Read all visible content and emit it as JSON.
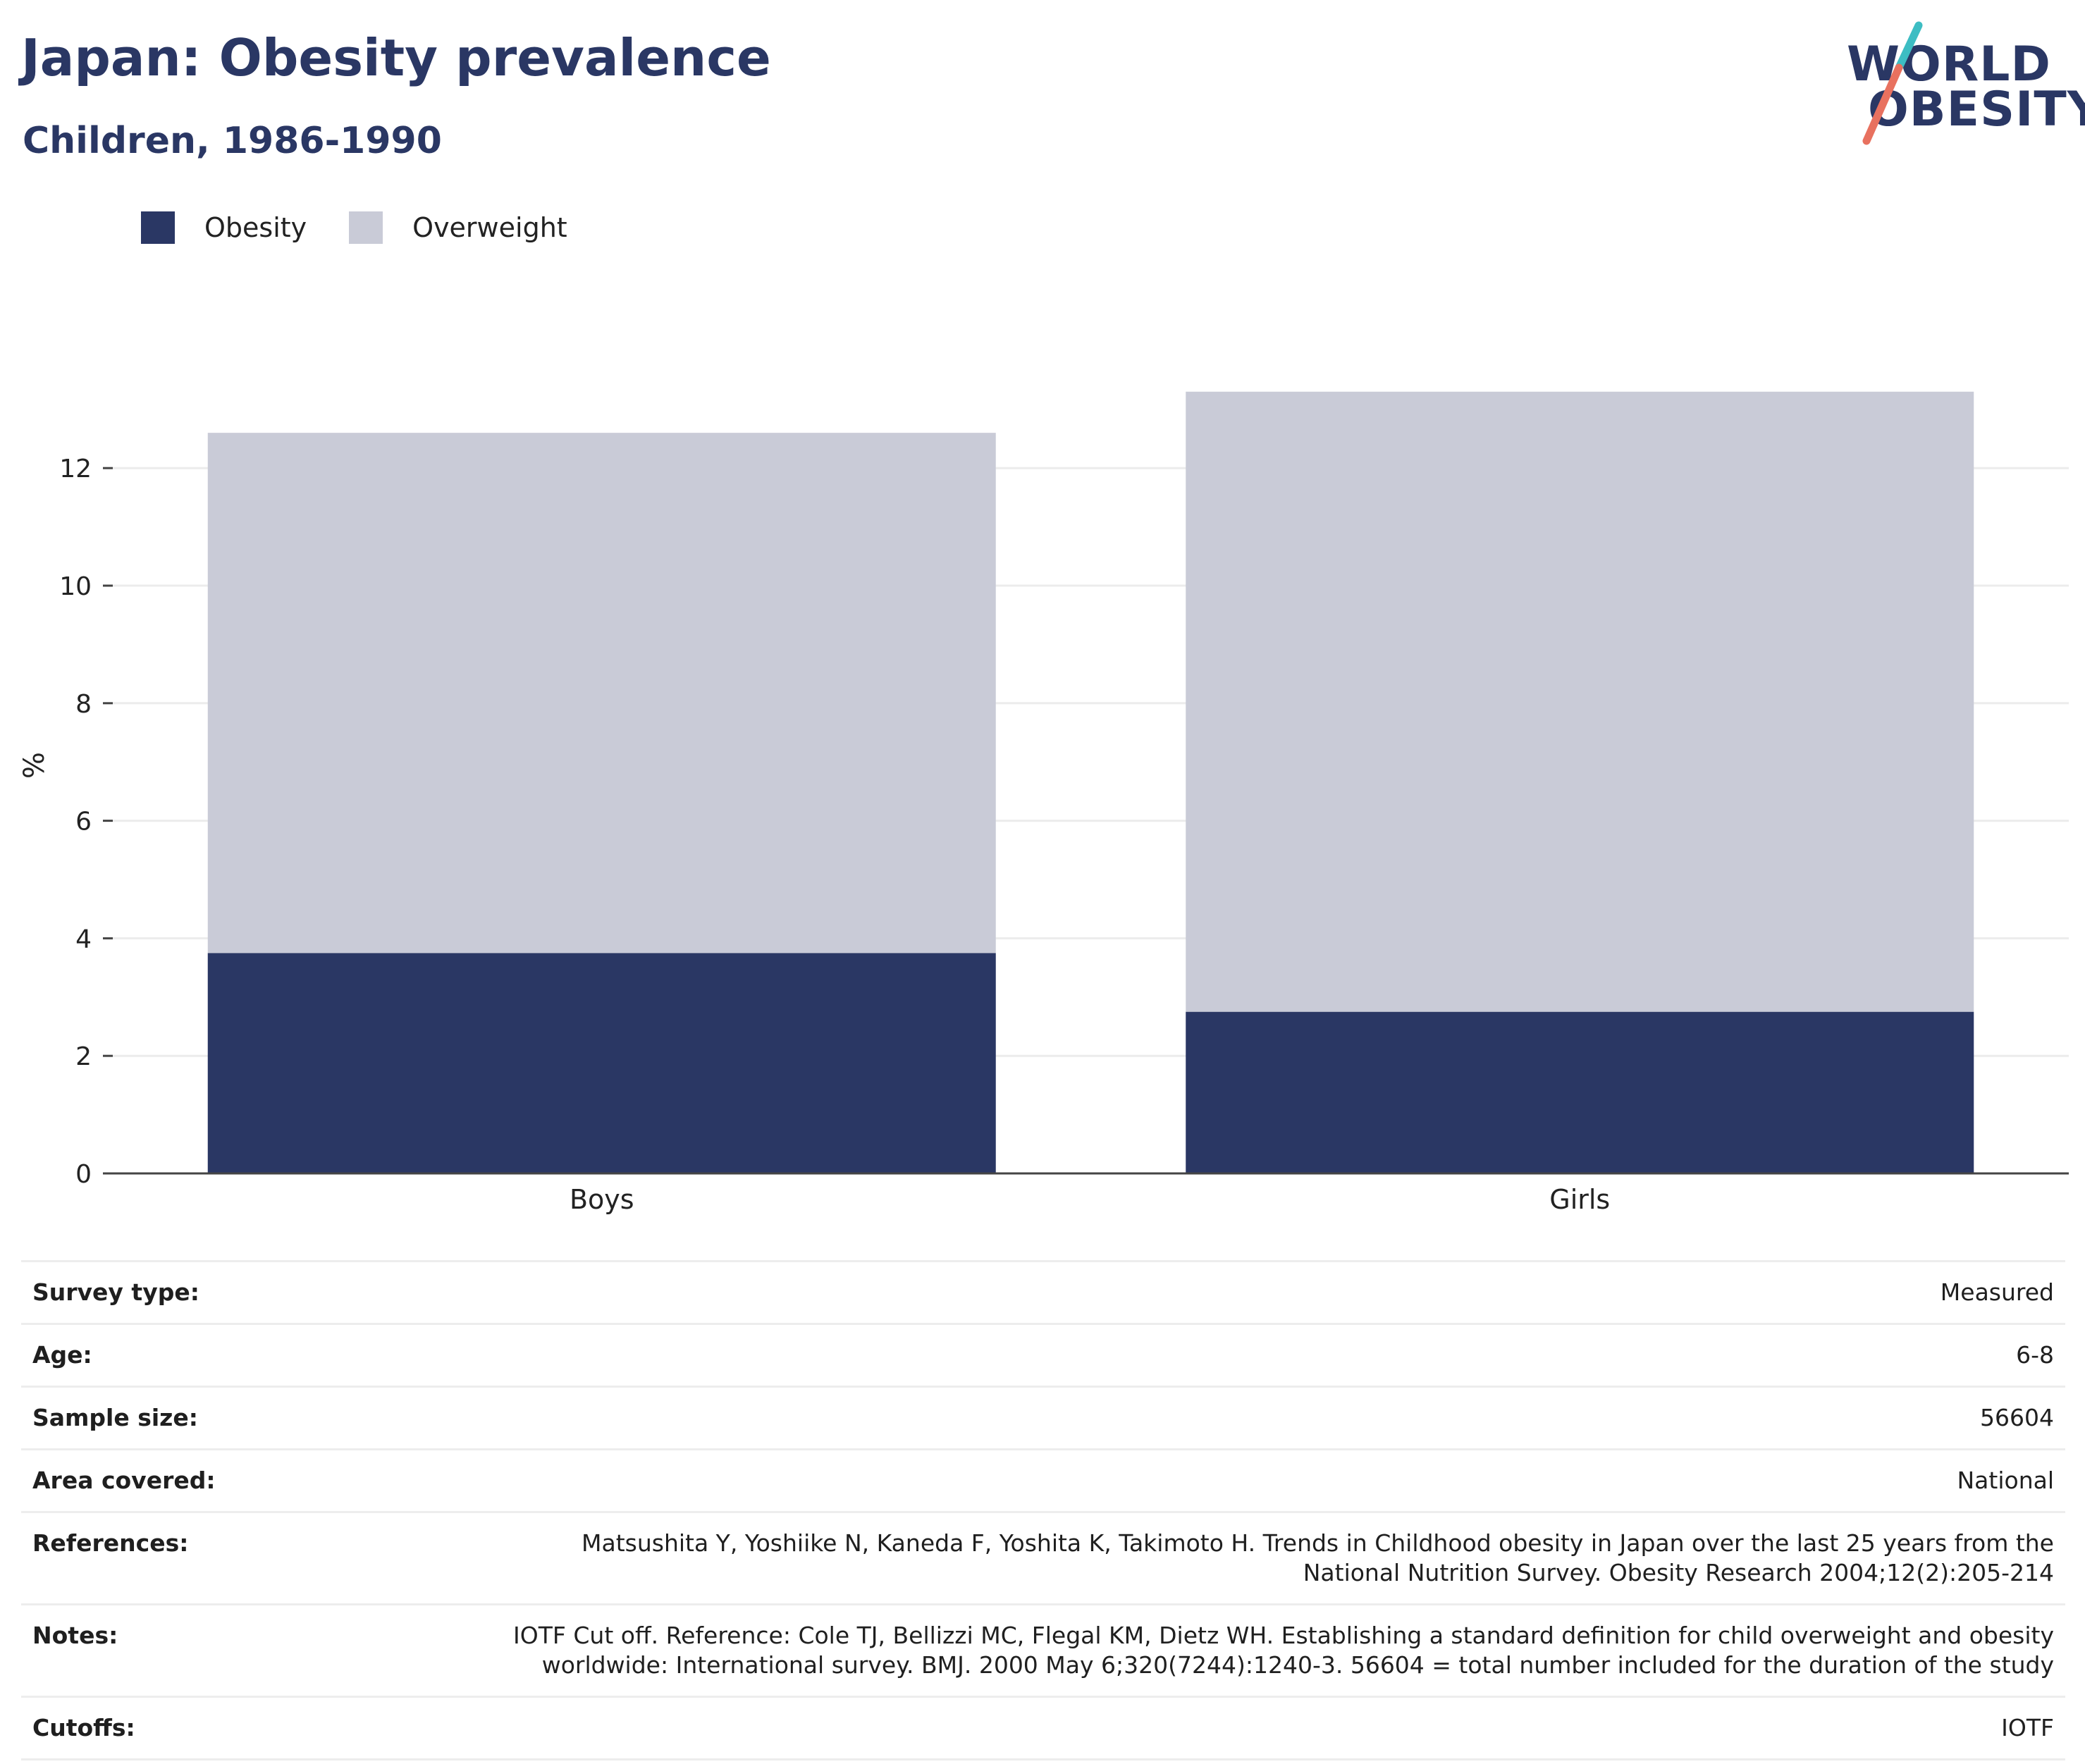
{
  "header": {
    "title": "Japan: Obesity prevalence",
    "subtitle": "Children, 1986-1990"
  },
  "logo": {
    "line1": "WORLD",
    "line2": "OBESITY",
    "accent_colors": [
      "#3dbdc3",
      "#e8715f"
    ]
  },
  "legend": [
    {
      "label": "Obesity",
      "color": "#2a3764"
    },
    {
      "label": "Overweight",
      "color": "#c9cbd7"
    }
  ],
  "chart_data": {
    "type": "bar",
    "stacked": true,
    "categories": [
      "Boys",
      "Girls"
    ],
    "series": [
      {
        "name": "Obesity",
        "values": [
          3.75,
          2.75
        ],
        "color": "#2a3764"
      },
      {
        "name": "Overweight",
        "values": [
          8.85,
          10.55
        ],
        "color": "#c9cbd7"
      }
    ],
    "totals": [
      12.6,
      13.3
    ],
    "ylabel": "%",
    "xlabel": "",
    "ylim": [
      0,
      13.5
    ],
    "yticks": [
      0,
      2,
      4,
      6,
      8,
      10,
      12
    ],
    "grid": true,
    "legend_position": "top-left"
  },
  "info": [
    {
      "label": "Survey type:",
      "value": "Measured"
    },
    {
      "label": "Age:",
      "value": "6-8"
    },
    {
      "label": "Sample size:",
      "value": "56604"
    },
    {
      "label": "Area covered:",
      "value": "National"
    },
    {
      "label": "References:",
      "value": "Matsushita Y, Yoshiike N, Kaneda F, Yoshita K, Takimoto H. Trends in Childhood obesity in Japan over the last 25 years from the National Nutrition Survey. Obesity Research 2004;12(2):205-214"
    },
    {
      "label": "Notes:",
      "value": "IOTF Cut off. Reference: Cole TJ, Bellizzi MC, Flegal KM, Dietz WH. Establishing a standard definition for child overweight and obesity worldwide: International survey. BMJ. 2000 May 6;320(7244):1240-3. 56604 = total number included for the duration of the study"
    },
    {
      "label": "Cutoffs:",
      "value": "IOTF"
    }
  ]
}
